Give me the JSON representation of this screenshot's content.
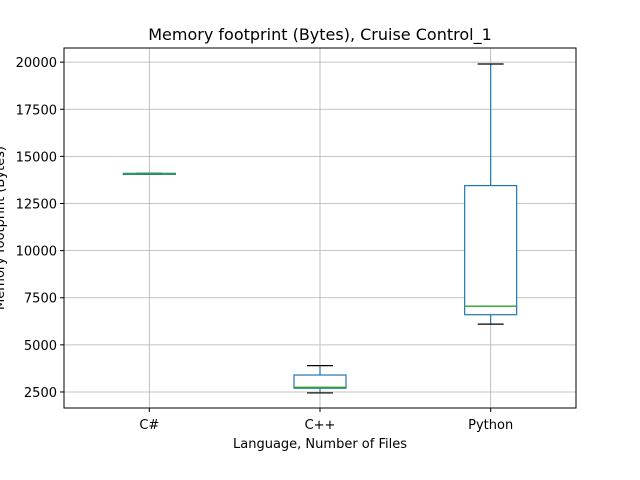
{
  "chart_data": {
    "type": "box",
    "title": "Memory footprint (Bytes), Cruise Control_1",
    "xlabel": "Language, Number of Files",
    "ylabel": "Memory footprint (Bytes)",
    "ylim": [
      1650,
      20750
    ],
    "yticks": [
      2500,
      5000,
      7500,
      10000,
      12500,
      15000,
      17500,
      20000
    ],
    "grid": true,
    "categories": [
      "C#",
      "C++",
      "Python"
    ],
    "boxes": [
      {
        "category": "C#",
        "whisker_low": 14050,
        "q1": 14050,
        "median": 14080,
        "q3": 14100,
        "whisker_high": 14100
      },
      {
        "category": "C++",
        "whisker_low": 2450,
        "q1": 2700,
        "median": 2750,
        "q3": 3400,
        "whisker_high": 3900
      },
      {
        "category": "Python",
        "whisker_low": 6100,
        "q1": 6600,
        "median": 7050,
        "q3": 13450,
        "whisker_high": 19900
      }
    ],
    "colors": {
      "box": "#1f77b4",
      "median": "#2ca02c",
      "whisker_cap": "#000000",
      "grid": "#b0b0b0"
    }
  }
}
